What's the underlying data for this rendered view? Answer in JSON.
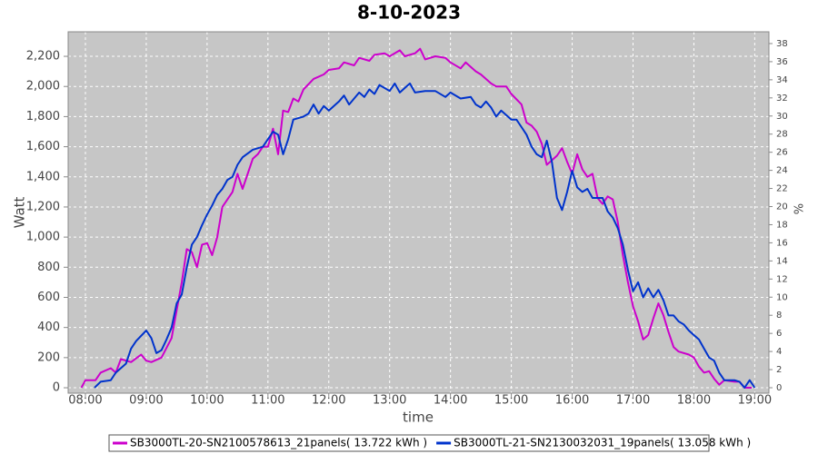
{
  "chart_data": {
    "type": "line",
    "title": "8-10-2023",
    "xlabel": "time",
    "ylabel": "Watt",
    "y2label": "%",
    "xlim": [
      "07:43",
      "19:14"
    ],
    "xticks": [
      "08:00",
      "09:00",
      "10:00",
      "11:00",
      "12:00",
      "13:00",
      "14:00",
      "15:00",
      "16:00",
      "17:00",
      "18:00",
      "19:00"
    ],
    "ylim": [
      -36,
      2363
    ],
    "yticks": [
      0,
      200,
      400,
      600,
      800,
      {
        "value": 1000,
        "label": "1,000"
      },
      {
        "value": 1200,
        "label": "1,200"
      },
      {
        "value": 1400,
        "label": "1,400"
      },
      {
        "value": 1600,
        "label": "1,600"
      },
      {
        "value": 1800,
        "label": "1,800"
      },
      {
        "value": 2000,
        "label": "2,000"
      },
      {
        "value": 2200,
        "label": "2,200"
      }
    ],
    "y2lim": [
      -0.6,
      39.3
    ],
    "y2ticks": [
      0,
      2,
      4,
      6,
      8,
      10,
      12,
      14,
      16,
      18,
      20,
      22,
      24,
      26,
      28,
      30,
      32,
      34,
      36,
      38
    ],
    "grid": true,
    "series": [
      {
        "name": "SB3000TL-20-SN2100578613_21panels( 13.722 kWh )",
        "color": "#cc00cc",
        "x": [
          "07:56",
          "08:00",
          "08:10",
          "08:15",
          "08:25",
          "08:30",
          "08:35",
          "08:45",
          "08:55",
          "09:00",
          "09:05",
          "09:15",
          "09:25",
          "09:35",
          "09:40",
          "09:45",
          "09:50",
          "09:55",
          "10:00",
          "10:05",
          "10:10",
          "10:15",
          "10:25",
          "10:30",
          "10:35",
          "10:45",
          "10:50",
          "10:55",
          "11:00",
          "11:05",
          "11:10",
          "11:15",
          "11:20",
          "11:25",
          "11:30",
          "11:35",
          "11:45",
          "11:55",
          "12:00",
          "12:10",
          "12:15",
          "12:25",
          "12:30",
          "12:40",
          "12:45",
          "12:55",
          "13:00",
          "13:10",
          "13:15",
          "13:25",
          "13:30",
          "13:35",
          "13:45",
          "13:55",
          "14:00",
          "14:10",
          "14:15",
          "14:25",
          "14:30",
          "14:40",
          "14:45",
          "14:55",
          "15:00",
          "15:10",
          "15:15",
          "15:20",
          "15:25",
          "15:30",
          "15:35",
          "15:45",
          "15:50",
          "15:55",
          "16:00",
          "16:05",
          "16:10",
          "16:15",
          "16:20",
          "16:25",
          "16:30",
          "16:35",
          "16:40",
          "16:45",
          "16:50",
          "16:55",
          "17:00",
          "17:05",
          "17:10",
          "17:15",
          "17:20",
          "17:25",
          "17:30",
          "17:35",
          "17:40",
          "17:45",
          "17:55",
          "18:00",
          "18:05",
          "18:10",
          "18:15",
          "18:20",
          "18:25",
          "18:30",
          "18:40",
          "18:45",
          "18:50",
          "18:57"
        ],
        "values": [
          0,
          50,
          50,
          100,
          130,
          100,
          190,
          170,
          220,
          180,
          170,
          200,
          330,
          700,
          920,
          900,
          800,
          950,
          960,
          880,
          1000,
          1200,
          1300,
          1420,
          1320,
          1520,
          1550,
          1600,
          1600,
          1720,
          1550,
          1840,
          1830,
          1920,
          1900,
          1980,
          2050,
          2080,
          2110,
          2120,
          2160,
          2140,
          2190,
          2170,
          2210,
          2220,
          2200,
          2240,
          2200,
          2220,
          2250,
          2180,
          2200,
          2190,
          2160,
          2120,
          2160,
          2100,
          2080,
          2020,
          2000,
          2000,
          1950,
          1880,
          1760,
          1740,
          1700,
          1620,
          1480,
          1540,
          1590,
          1500,
          1420,
          1550,
          1450,
          1400,
          1420,
          1260,
          1220,
          1270,
          1250,
          1100,
          880,
          700,
          540,
          440,
          320,
          350,
          460,
          560,
          480,
          370,
          270,
          240,
          220,
          200,
          140,
          100,
          110,
          60,
          20,
          50,
          40,
          40,
          0,
          0
        ]
      },
      {
        "name": "SB3000TL-21-SN2130032031_19panels( 13.058 kWh )",
        "color": "#0033cc",
        "x": [
          "08:09",
          "08:15",
          "08:25",
          "08:30",
          "08:40",
          "08:45",
          "08:50",
          "09:00",
          "09:05",
          "09:10",
          "09:15",
          "09:20",
          "09:25",
          "09:30",
          "09:35",
          "09:40",
          "09:45",
          "09:50",
          "09:55",
          "10:00",
          "10:05",
          "10:10",
          "10:15",
          "10:20",
          "10:25",
          "10:30",
          "10:35",
          "10:45",
          "10:55",
          "11:00",
          "11:05",
          "11:10",
          "11:15",
          "11:20",
          "11:25",
          "11:35",
          "11:40",
          "11:45",
          "11:50",
          "11:55",
          "12:00",
          "12:10",
          "12:15",
          "12:20",
          "12:30",
          "12:35",
          "12:40",
          "12:45",
          "12:50",
          "13:00",
          "13:05",
          "13:10",
          "13:15",
          "13:20",
          "13:25",
          "13:35",
          "13:45",
          "13:55",
          "14:00",
          "14:10",
          "14:20",
          "14:25",
          "14:30",
          "14:35",
          "14:40",
          "14:45",
          "14:50",
          "15:00",
          "15:05",
          "15:10",
          "15:15",
          "15:20",
          "15:25",
          "15:30",
          "15:35",
          "15:40",
          "15:45",
          "15:50",
          "15:55",
          "16:00",
          "16:05",
          "16:10",
          "16:15",
          "16:20",
          "16:25",
          "16:30",
          "16:35",
          "16:40",
          "16:45",
          "16:50",
          "16:55",
          "17:00",
          "17:05",
          "17:10",
          "17:15",
          "17:20",
          "17:25",
          "17:30",
          "17:35",
          "17:40",
          "17:45",
          "17:50",
          "17:55",
          "18:00",
          "18:05",
          "18:10",
          "18:15",
          "18:20",
          "18:25",
          "18:30",
          "18:40",
          "18:45",
          "18:50",
          "18:55",
          "19:00"
        ],
        "values": [
          0,
          40,
          50,
          100,
          160,
          260,
          310,
          380,
          330,
          230,
          250,
          320,
          400,
          560,
          620,
          800,
          950,
          1000,
          1080,
          1150,
          1210,
          1280,
          1320,
          1380,
          1400,
          1480,
          1530,
          1580,
          1600,
          1650,
          1700,
          1680,
          1550,
          1650,
          1780,
          1800,
          1820,
          1880,
          1820,
          1870,
          1840,
          1900,
          1940,
          1880,
          1960,
          1930,
          1980,
          1950,
          2010,
          1970,
          2020,
          1960,
          1990,
          2020,
          1960,
          1970,
          1970,
          1930,
          1960,
          1920,
          1930,
          1880,
          1860,
          1900,
          1860,
          1800,
          1840,
          1780,
          1780,
          1730,
          1680,
          1600,
          1550,
          1530,
          1640,
          1500,
          1260,
          1180,
          1300,
          1440,
          1330,
          1300,
          1320,
          1260,
          1260,
          1260,
          1170,
          1130,
          1060,
          950,
          780,
          640,
          700,
          600,
          660,
          600,
          650,
          580,
          480,
          480,
          440,
          420,
          380,
          350,
          320,
          260,
          200,
          180,
          100,
          50,
          50,
          40,
          0,
          50,
          0
        ]
      }
    ]
  }
}
